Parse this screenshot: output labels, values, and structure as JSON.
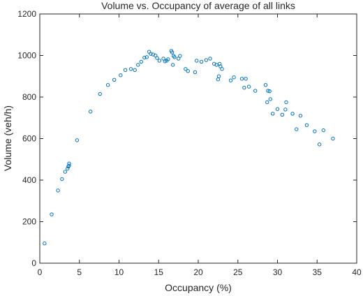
{
  "chart_data": {
    "type": "scatter",
    "title": "Volume vs. Occupancy of average of all links",
    "xlabel": "Occupancy (%)",
    "ylabel": "Volume (veh/h)",
    "xlim": [
      0,
      40
    ],
    "ylim": [
      0,
      1200
    ],
    "xticks": [
      0,
      5,
      10,
      15,
      20,
      25,
      30,
      35,
      40
    ],
    "yticks": [
      0,
      200,
      400,
      600,
      800,
      1000,
      1200
    ],
    "grid": false,
    "marker": "open-circle",
    "color": "#0072BD",
    "points": [
      [
        0.6,
        95
      ],
      [
        1.5,
        235
      ],
      [
        2.3,
        350
      ],
      [
        2.8,
        405
      ],
      [
        3.2,
        440
      ],
      [
        3.5,
        455
      ],
      [
        3.6,
        465
      ],
      [
        3.7,
        470
      ],
      [
        3.7,
        480
      ],
      [
        4.7,
        592
      ],
      [
        6.4,
        730
      ],
      [
        7.6,
        815
      ],
      [
        8.6,
        858
      ],
      [
        9.4,
        883
      ],
      [
        10.2,
        905
      ],
      [
        10.8,
        930
      ],
      [
        11.5,
        935
      ],
      [
        12.0,
        930
      ],
      [
        12.4,
        955
      ],
      [
        12.8,
        970
      ],
      [
        13.2,
        990
      ],
      [
        13.5,
        992
      ],
      [
        13.8,
        1018
      ],
      [
        14.0,
        1008
      ],
      [
        14.3,
        1005
      ],
      [
        14.6,
        1000
      ],
      [
        14.8,
        988
      ],
      [
        15.1,
        975
      ],
      [
        15.6,
        985
      ],
      [
        15.8,
        972
      ],
      [
        16.0,
        975
      ],
      [
        16.2,
        982
      ],
      [
        16.6,
        1022
      ],
      [
        16.7,
        1015
      ],
      [
        16.8,
        955
      ],
      [
        16.9,
        998
      ],
      [
        17.0,
        992
      ],
      [
        17.5,
        985
      ],
      [
        17.7,
        998
      ],
      [
        18.4,
        935
      ],
      [
        18.7,
        925
      ],
      [
        19.6,
        920
      ],
      [
        19.8,
        975
      ],
      [
        20.4,
        970
      ],
      [
        21.0,
        978
      ],
      [
        21.5,
        985
      ],
      [
        22.0,
        960
      ],
      [
        22.3,
        955
      ],
      [
        22.5,
        885
      ],
      [
        22.6,
        900
      ],
      [
        22.7,
        960
      ],
      [
        22.8,
        948
      ],
      [
        23.0,
        935
      ],
      [
        24.1,
        880
      ],
      [
        24.5,
        895
      ],
      [
        25.5,
        888
      ],
      [
        25.8,
        845
      ],
      [
        26.0,
        888
      ],
      [
        26.4,
        850
      ],
      [
        27.2,
        830
      ],
      [
        28.5,
        858
      ],
      [
        28.7,
        775
      ],
      [
        28.8,
        830
      ],
      [
        29.0,
        828
      ],
      [
        29.1,
        790
      ],
      [
        29.4,
        720
      ],
      [
        30.0,
        742
      ],
      [
        30.6,
        715
      ],
      [
        31.0,
        740
      ],
      [
        31.1,
        775
      ],
      [
        31.9,
        720
      ],
      [
        32.4,
        645
      ],
      [
        32.9,
        710
      ],
      [
        33.7,
        665
      ],
      [
        34.7,
        635
      ],
      [
        35.3,
        572
      ],
      [
        35.8,
        640
      ],
      [
        37.0,
        600
      ]
    ]
  }
}
